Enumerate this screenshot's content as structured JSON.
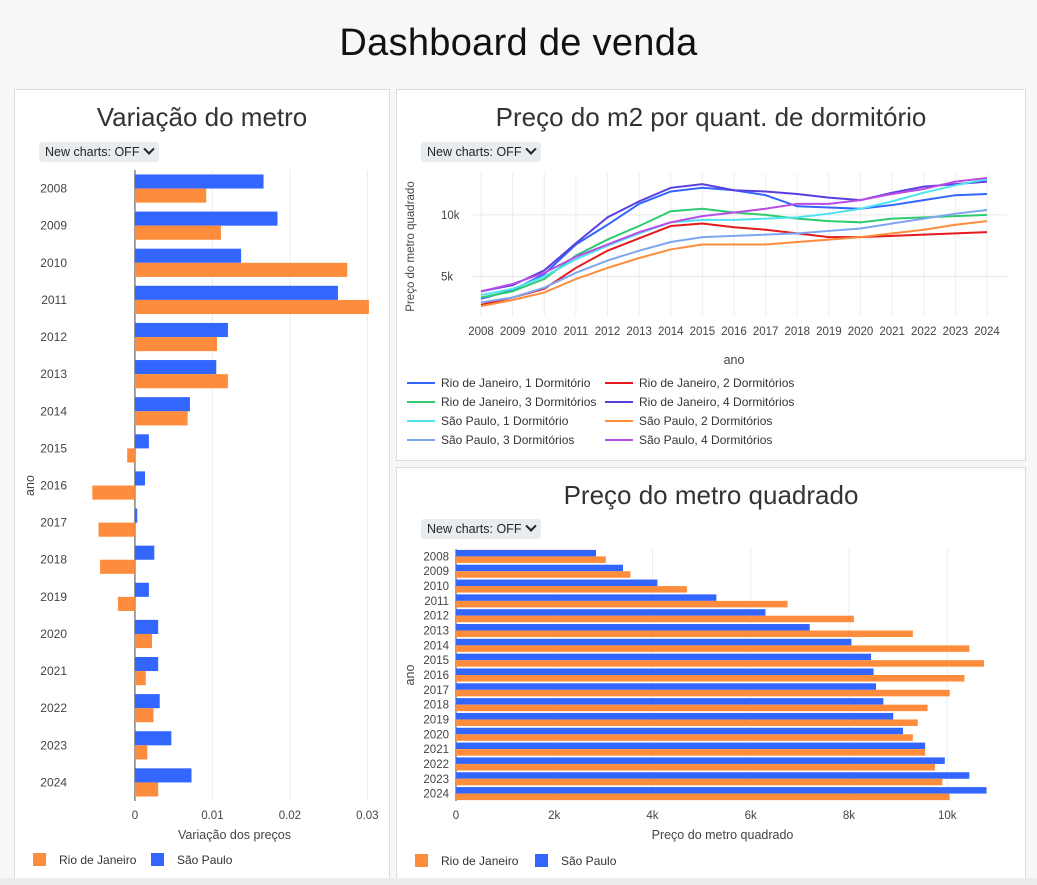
{
  "page": {
    "title": "Dashboard de venda"
  },
  "toggle_label": "New charts: OFF",
  "colors": {
    "rio": "#fd8d3c",
    "sp": "#3366ff"
  },
  "charts": [
    {
      "id": "variacao",
      "title": "Variação do metro",
      "xlabel": "Variação dos preços",
      "ylabel": "ano",
      "legend": [
        {
          "name": "Rio de Janeiro",
          "color": "#fd8d3c"
        },
        {
          "name": "São Paulo",
          "color": "#3366ff"
        }
      ]
    },
    {
      "id": "dormitorio",
      "title": "Preço do m2 por quant. de dormitório",
      "xlabel": "ano",
      "ylabel": "Preço do metro quadrado"
    },
    {
      "id": "preco",
      "title": "Preço do metro quadrado",
      "xlabel": "Preço do metro quadrado",
      "ylabel": "ano",
      "legend": [
        {
          "name": "Rio de Janeiro",
          "color": "#fd8d3c"
        },
        {
          "name": "São Paulo",
          "color": "#3366ff"
        }
      ]
    }
  ],
  "chart_data": [
    {
      "type": "bar",
      "orientation": "horizontal",
      "title": "Variação do metro",
      "xlabel": "Variação dos preços",
      "ylabel": "ano",
      "categories": [
        "2008",
        "2009",
        "2010",
        "2011",
        "2012",
        "2013",
        "2014",
        "2015",
        "2016",
        "2017",
        "2018",
        "2019",
        "2020",
        "2021",
        "2022",
        "2023",
        "2024"
      ],
      "xlim": [
        -0.0058,
        0.0315
      ],
      "xticks": [
        0,
        0.01,
        0.02,
        0.03
      ],
      "xtick_labels": [
        "0",
        "0.01",
        "0.02",
        "0.03"
      ],
      "series": [
        {
          "name": "São Paulo",
          "color": "#3366ff",
          "values": [
            0.0166,
            0.0184,
            0.0137,
            0.0262,
            0.012,
            0.0105,
            0.0071,
            0.0018,
            0.0013,
            0.0003,
            0.0025,
            0.0018,
            0.003,
            0.003,
            0.0032,
            0.0047,
            0.0073
          ]
        },
        {
          "name": "Rio de Janeiro",
          "color": "#fd8d3c",
          "values": [
            0.0092,
            0.0111,
            0.0274,
            0.0302,
            0.0106,
            0.012,
            0.0068,
            -0.001,
            -0.0055,
            -0.0047,
            -0.0045,
            -0.0022,
            0.0022,
            0.0014,
            0.0024,
            0.0016,
            0.003
          ]
        }
      ],
      "legend_position": "bottom"
    },
    {
      "type": "line",
      "title": "Preço do m2 por quant. de dormitório",
      "xlabel": "ano",
      "ylabel": "Preço do metro quadrado",
      "x": [
        2008,
        2009,
        2010,
        2011,
        2012,
        2013,
        2014,
        2015,
        2016,
        2017,
        2018,
        2019,
        2020,
        2021,
        2022,
        2023,
        2024
      ],
      "ylim": [
        1800,
        13400
      ],
      "yticks": [
        5000,
        10000
      ],
      "ytick_labels": [
        "5k",
        "10k"
      ],
      "series": [
        {
          "name": "Rio de Janeiro, 1 Dormitório",
          "color": "#3366ff",
          "values": [
            3200,
            3900,
            5200,
            7600,
            9200,
            10900,
            11900,
            12200,
            12000,
            11600,
            10700,
            10600,
            10500,
            10800,
            11200,
            11600,
            11700
          ]
        },
        {
          "name": "Rio de Janeiro, 2 Dormitórios",
          "color": "#e41a1c",
          "values": [
            2700,
            3300,
            4000,
            5700,
            7100,
            8100,
            9100,
            9300,
            9000,
            8800,
            8500,
            8200,
            8200,
            8300,
            8400,
            8500,
            8600
          ]
        },
        {
          "name": "Rio de Janeiro, 3 Dormitórios",
          "color": "#2ecc71",
          "values": [
            3300,
            3800,
            4800,
            6700,
            8000,
            9100,
            10300,
            10500,
            10200,
            10000,
            9700,
            9500,
            9400,
            9700,
            9800,
            9900,
            10000
          ]
        },
        {
          "name": "Rio de Janeiro, 4 Dormitórios",
          "color": "#5b3ee0",
          "values": [
            3800,
            4300,
            5500,
            7700,
            9800,
            11100,
            12200,
            12500,
            12000,
            11900,
            11700,
            11400,
            11200,
            11800,
            12300,
            12500,
            12700
          ]
        },
        {
          "name": "São Paulo, 1 Dormitório",
          "color": "#4fe3f0",
          "values": [
            3500,
            4000,
            5000,
            6400,
            7500,
            8500,
            9400,
            9600,
            9600,
            9700,
            9800,
            10100,
            10500,
            11100,
            11800,
            12400,
            12900
          ]
        },
        {
          "name": "São Paulo, 2 Dormitórios",
          "color": "#fd8d3c",
          "values": [
            2600,
            3100,
            3700,
            4800,
            5700,
            6500,
            7200,
            7600,
            7600,
            7600,
            7800,
            8000,
            8200,
            8500,
            8800,
            9200,
            9500
          ]
        },
        {
          "name": "São Paulo, 3 Dormitórios",
          "color": "#7ea6f0",
          "values": [
            2900,
            3300,
            4100,
            5300,
            6300,
            7100,
            7800,
            8200,
            8300,
            8400,
            8500,
            8700,
            8900,
            9300,
            9700,
            10100,
            10400
          ]
        },
        {
          "name": "São Paulo, 4 Dormitórios",
          "color": "#b84ee6",
          "values": [
            3800,
            4400,
            5300,
            6600,
            7600,
            8600,
            9400,
            9900,
            10200,
            10500,
            10900,
            10900,
            11200,
            11700,
            12100,
            12700,
            13000
          ]
        }
      ],
      "legend_position": "bottom"
    },
    {
      "type": "bar",
      "orientation": "horizontal",
      "title": "Preço do metro quadrado",
      "xlabel": "Preço do metro quadrado",
      "ylabel": "ano",
      "categories": [
        "2008",
        "2009",
        "2010",
        "2011",
        "2012",
        "2013",
        "2014",
        "2015",
        "2016",
        "2017",
        "2018",
        "2019",
        "2020",
        "2021",
        "2022",
        "2023",
        "2024"
      ],
      "xlim": [
        0,
        10850
      ],
      "xticks": [
        0,
        2000,
        4000,
        6000,
        8000,
        10000
      ],
      "xtick_labels": [
        "0",
        "2k",
        "4k",
        "6k",
        "8k",
        "10k"
      ],
      "series": [
        {
          "name": "São Paulo",
          "color": "#3366ff",
          "values": [
            2850,
            3400,
            4100,
            5300,
            6300,
            7200,
            8050,
            8450,
            8500,
            8550,
            8700,
            8900,
            9100,
            9550,
            9950,
            10450,
            10800
          ]
        },
        {
          "name": "Rio de Janeiro",
          "color": "#fd8d3c",
          "values": [
            3050,
            3550,
            4700,
            6750,
            8100,
            9300,
            10450,
            10750,
            10350,
            10050,
            9600,
            9400,
            9300,
            9550,
            9750,
            9900,
            10050
          ]
        }
      ],
      "legend_position": "bottom"
    }
  ]
}
